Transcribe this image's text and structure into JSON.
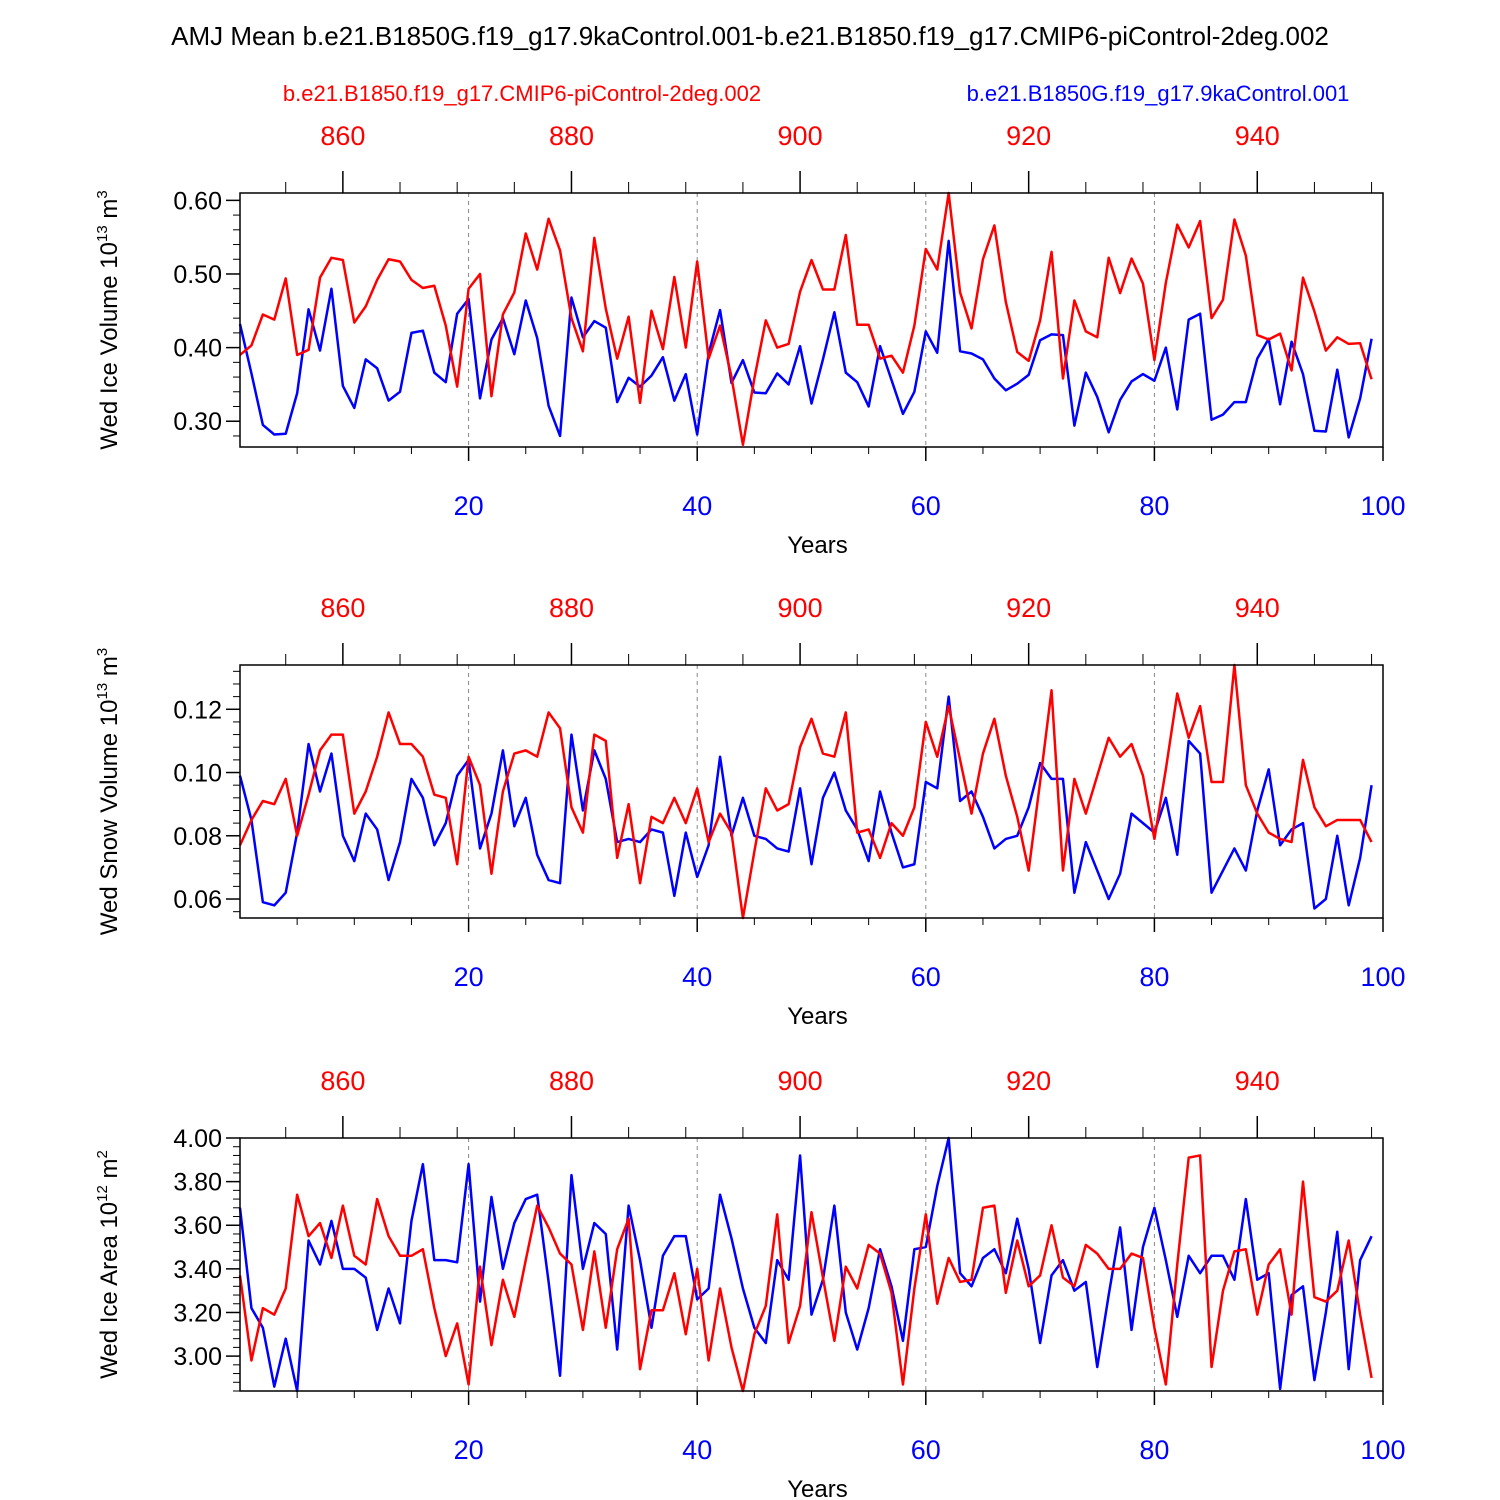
{
  "title": "AMJ Mean b.e21.B1850G.f19_g17.9kaControl.001-b.e21.B1850.f19_g17.CMIP6-piControl-2deg.002",
  "legend": {
    "red_label": "b.e21.B1850.f19_g17.CMIP6-piControl-2deg.002",
    "blue_label": "b.e21.B1850G.f19_g17.9kaControl.001"
  },
  "colors": {
    "red": "#ff0000",
    "blue": "#0000ff",
    "axis": "#000000",
    "grid": "#888888"
  },
  "chart_data": [
    {
      "type": "line",
      "ylabel": "Wed Ice Volume",
      "yunits": "10^13 m^3",
      "unit_base": "10",
      "unit_exp": "13",
      "unit_suffix": " m",
      "unit_suffix_exp": "3",
      "xlabel": "Years",
      "xlim": [
        0,
        100
      ],
      "ylim": [
        0.265,
        0.61
      ],
      "yticks": [
        0.3,
        0.4,
        0.5,
        0.6
      ],
      "ytick_labels": [
        "0.30",
        "0.40",
        "0.50",
        "0.60"
      ],
      "xticks": [
        20,
        40,
        60,
        80,
        100
      ],
      "xtick_labels": [
        "20",
        "40",
        "60",
        "80",
        "100"
      ],
      "top_axis": {
        "ticks": [
          860,
          880,
          900,
          920,
          940
        ],
        "labels": [
          "860",
          "880",
          "900",
          "920",
          "940"
        ],
        "offset": 851
      },
      "grid_x": [
        20,
        40,
        60,
        80
      ],
      "series": [
        {
          "name": "b.e21.B1850G.f19_g17.9kaControl.001",
          "color": "blue",
          "x_start": 0,
          "values": [
            0.432,
            0.365,
            0.295,
            0.282,
            0.283,
            0.338,
            0.452,
            0.396,
            0.48,
            0.348,
            0.318,
            0.384,
            0.372,
            0.328,
            0.34,
            0.42,
            0.423,
            0.366,
            0.353,
            0.446,
            0.466,
            0.331,
            0.411,
            0.44,
            0.391,
            0.464,
            0.413,
            0.321,
            0.28,
            0.468,
            0.414,
            0.436,
            0.427,
            0.326,
            0.359,
            0.347,
            0.362,
            0.387,
            0.328,
            0.364,
            0.282,
            0.392,
            0.451,
            0.352,
            0.383,
            0.339,
            0.338,
            0.365,
            0.35,
            0.402,
            0.324,
            0.384,
            0.448,
            0.366,
            0.353,
            0.32,
            0.402,
            0.356,
            0.31,
            0.34,
            0.422,
            0.393,
            0.545,
            0.395,
            0.392,
            0.384,
            0.358,
            0.342,
            0.351,
            0.363,
            0.41,
            0.418,
            0.417,
            0.294,
            0.366,
            0.333,
            0.285,
            0.329,
            0.354,
            0.364,
            0.355,
            0.4,
            0.316,
            0.438,
            0.446,
            0.302,
            0.309,
            0.326,
            0.326,
            0.385,
            0.412,
            0.323,
            0.408,
            0.364,
            0.287,
            0.286,
            0.37,
            0.278,
            0.331,
            0.412
          ]
        },
        {
          "name": "b.e21.B1850.f19_g17.CMIP6-piControl-2deg.002",
          "color": "red",
          "x_start": 0,
          "values": [
            0.39,
            0.403,
            0.445,
            0.438,
            0.494,
            0.39,
            0.397,
            0.495,
            0.522,
            0.519,
            0.434,
            0.456,
            0.492,
            0.52,
            0.517,
            0.492,
            0.481,
            0.484,
            0.43,
            0.347,
            0.48,
            0.5,
            0.334,
            0.445,
            0.475,
            0.555,
            0.506,
            0.575,
            0.532,
            0.44,
            0.395,
            0.549,
            0.453,
            0.385,
            0.442,
            0.325,
            0.45,
            0.398,
            0.496,
            0.4,
            0.517,
            0.385,
            0.43,
            0.36,
            0.268,
            0.358,
            0.437,
            0.4,
            0.405,
            0.476,
            0.519,
            0.479,
            0.479,
            0.553,
            0.431,
            0.431,
            0.385,
            0.389,
            0.366,
            0.43,
            0.534,
            0.506,
            0.61,
            0.475,
            0.426,
            0.52,
            0.566,
            0.462,
            0.394,
            0.382,
            0.437,
            0.53,
            0.358,
            0.464,
            0.422,
            0.414,
            0.522,
            0.474,
            0.521,
            0.487,
            0.383,
            0.488,
            0.567,
            0.536,
            0.572,
            0.44,
            0.465,
            0.574,
            0.525,
            0.417,
            0.411,
            0.419,
            0.369,
            0.495,
            0.449,
            0.396,
            0.414,
            0.405,
            0.406,
            0.357
          ]
        }
      ]
    },
    {
      "type": "line",
      "ylabel": "Wed Snow Volume",
      "yunits": "10^13 m^3",
      "unit_base": "10",
      "unit_exp": "13",
      "unit_suffix": " m",
      "unit_suffix_exp": "3",
      "xlabel": "Years",
      "xlim": [
        0,
        100
      ],
      "ylim": [
        0.054,
        0.134
      ],
      "yticks": [
        0.06,
        0.08,
        0.1,
        0.12
      ],
      "ytick_labels": [
        "0.06",
        "0.08",
        "0.10",
        "0.12"
      ],
      "xticks": [
        20,
        40,
        60,
        80,
        100
      ],
      "xtick_labels": [
        "20",
        "40",
        "60",
        "80",
        "100"
      ],
      "top_axis": {
        "ticks": [
          860,
          880,
          900,
          920,
          940
        ],
        "labels": [
          "860",
          "880",
          "900",
          "920",
          "940"
        ],
        "offset": 851
      },
      "grid_x": [
        20,
        40,
        60,
        80
      ],
      "series": [
        {
          "name": "b.e21.B1850G.f19_g17.9kaControl.001",
          "color": "blue",
          "x_start": 0,
          "values": [
            0.099,
            0.085,
            0.059,
            0.058,
            0.062,
            0.081,
            0.109,
            0.094,
            0.106,
            0.08,
            0.072,
            0.087,
            0.082,
            0.066,
            0.078,
            0.098,
            0.092,
            0.077,
            0.084,
            0.099,
            0.104,
            0.076,
            0.087,
            0.107,
            0.083,
            0.092,
            0.074,
            0.066,
            0.065,
            0.112,
            0.088,
            0.107,
            0.098,
            0.078,
            0.079,
            0.078,
            0.082,
            0.081,
            0.061,
            0.081,
            0.067,
            0.077,
            0.105,
            0.08,
            0.092,
            0.08,
            0.079,
            0.076,
            0.075,
            0.095,
            0.071,
            0.092,
            0.1,
            0.088,
            0.082,
            0.072,
            0.094,
            0.081,
            0.07,
            0.071,
            0.097,
            0.095,
            0.124,
            0.091,
            0.094,
            0.086,
            0.076,
            0.079,
            0.08,
            0.089,
            0.103,
            0.098,
            0.098,
            0.062,
            0.078,
            0.069,
            0.06,
            0.068,
            0.087,
            0.084,
            0.081,
            0.092,
            0.074,
            0.11,
            0.106,
            0.062,
            0.069,
            0.076,
            0.069,
            0.088,
            0.101,
            0.077,
            0.082,
            0.084,
            0.057,
            0.06,
            0.08,
            0.058,
            0.073,
            0.096
          ]
        },
        {
          "name": "b.e21.B1850.f19_g17.CMIP6-piControl-2deg.002",
          "color": "red",
          "x_start": 0,
          "values": [
            0.077,
            0.085,
            0.091,
            0.09,
            0.098,
            0.08,
            0.093,
            0.107,
            0.112,
            0.112,
            0.087,
            0.094,
            0.105,
            0.119,
            0.109,
            0.109,
            0.105,
            0.093,
            0.092,
            0.071,
            0.105,
            0.096,
            0.068,
            0.094,
            0.106,
            0.107,
            0.105,
            0.119,
            0.114,
            0.089,
            0.081,
            0.112,
            0.11,
            0.073,
            0.09,
            0.065,
            0.086,
            0.084,
            0.092,
            0.084,
            0.095,
            0.078,
            0.087,
            0.081,
            0.054,
            0.075,
            0.095,
            0.088,
            0.09,
            0.108,
            0.117,
            0.106,
            0.105,
            0.119,
            0.081,
            0.082,
            0.073,
            0.084,
            0.08,
            0.089,
            0.116,
            0.105,
            0.121,
            0.104,
            0.087,
            0.106,
            0.117,
            0.099,
            0.086,
            0.069,
            0.097,
            0.126,
            0.069,
            0.098,
            0.087,
            0.099,
            0.111,
            0.105,
            0.109,
            0.099,
            0.079,
            0.101,
            0.125,
            0.111,
            0.121,
            0.097,
            0.097,
            0.134,
            0.096,
            0.087,
            0.081,
            0.079,
            0.078,
            0.104,
            0.089,
            0.083,
            0.085,
            0.085,
            0.085,
            0.078
          ]
        }
      ]
    },
    {
      "type": "line",
      "ylabel": "Wed Ice Area",
      "yunits": "10^12 m^2",
      "unit_base": "10",
      "unit_exp": "12",
      "unit_suffix": " m",
      "unit_suffix_exp": "2",
      "xlabel": "Years",
      "xlim": [
        0,
        100
      ],
      "ylim": [
        2.84,
        4.0
      ],
      "yticks": [
        3.0,
        3.2,
        3.4,
        3.6,
        3.8,
        4.0
      ],
      "ytick_labels": [
        "3.00",
        "3.20",
        "3.40",
        "3.60",
        "3.80",
        "4.00"
      ],
      "xticks": [
        20,
        40,
        60,
        80,
        100
      ],
      "xtick_labels": [
        "20",
        "40",
        "60",
        "80",
        "100"
      ],
      "top_axis": {
        "ticks": [
          860,
          880,
          900,
          920,
          940
        ],
        "labels": [
          "860",
          "880",
          "900",
          "920",
          "940"
        ],
        "offset": 851
      },
      "grid_x": [
        20,
        40,
        60,
        80
      ],
      "series": [
        {
          "name": "b.e21.B1850G.f19_g17.9kaControl.001",
          "color": "blue",
          "x_start": 0,
          "values": [
            3.68,
            3.22,
            3.13,
            2.86,
            3.08,
            2.84,
            3.53,
            3.42,
            3.62,
            3.4,
            3.4,
            3.36,
            3.12,
            3.31,
            3.15,
            3.62,
            3.88,
            3.44,
            3.44,
            3.43,
            3.88,
            3.25,
            3.73,
            3.4,
            3.61,
            3.72,
            3.74,
            3.34,
            2.91,
            3.83,
            3.4,
            3.61,
            3.56,
            3.03,
            3.69,
            3.44,
            3.13,
            3.46,
            3.55,
            3.55,
            3.26,
            3.31,
            3.74,
            3.54,
            3.31,
            3.13,
            3.06,
            3.44,
            3.35,
            3.92,
            3.19,
            3.35,
            3.69,
            3.2,
            3.03,
            3.22,
            3.49,
            3.32,
            3.07,
            3.49,
            3.5,
            3.78,
            4.0,
            3.38,
            3.32,
            3.45,
            3.49,
            3.38,
            3.63,
            3.4,
            3.06,
            3.37,
            3.44,
            3.3,
            3.34,
            2.95,
            3.28,
            3.59,
            3.12,
            3.5,
            3.68,
            3.44,
            3.18,
            3.46,
            3.38,
            3.46,
            3.46,
            3.35,
            3.72,
            3.35,
            3.38,
            2.85,
            3.28,
            3.32,
            2.89,
            3.2,
            3.57,
            2.94,
            3.44,
            3.55
          ]
        },
        {
          "name": "b.e21.B1850.f19_g17.CMIP6-piControl-2deg.002",
          "color": "red",
          "x_start": 0,
          "values": [
            3.37,
            2.98,
            3.22,
            3.19,
            3.31,
            3.74,
            3.55,
            3.61,
            3.45,
            3.69,
            3.46,
            3.42,
            3.72,
            3.55,
            3.46,
            3.46,
            3.49,
            3.22,
            3.0,
            3.15,
            2.87,
            3.41,
            3.05,
            3.35,
            3.18,
            3.44,
            3.69,
            3.59,
            3.47,
            3.42,
            3.12,
            3.48,
            3.13,
            3.49,
            3.63,
            2.94,
            3.21,
            3.21,
            3.38,
            3.1,
            3.4,
            2.98,
            3.31,
            3.04,
            2.84,
            3.1,
            3.23,
            3.65,
            3.06,
            3.23,
            3.66,
            3.36,
            3.07,
            3.41,
            3.31,
            3.51,
            3.47,
            3.29,
            2.87,
            3.31,
            3.65,
            3.24,
            3.45,
            3.34,
            3.35,
            3.68,
            3.69,
            3.29,
            3.53,
            3.32,
            3.37,
            3.6,
            3.36,
            3.32,
            3.51,
            3.47,
            3.4,
            3.4,
            3.47,
            3.45,
            3.13,
            2.87,
            3.42,
            3.91,
            3.92,
            2.95,
            3.3,
            3.48,
            3.49,
            3.19,
            3.42,
            3.49,
            3.19,
            3.8,
            3.27,
            3.25,
            3.3,
            3.53,
            3.19,
            2.9
          ]
        }
      ]
    }
  ]
}
